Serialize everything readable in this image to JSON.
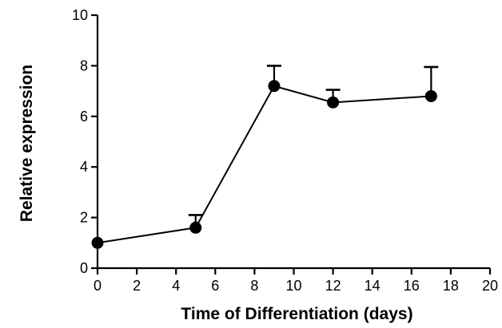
{
  "chart_data": {
    "type": "line",
    "title": "",
    "xlabel": "Time of Differentiation (days)",
    "ylabel": "Relative expression",
    "xlim": [
      0,
      20
    ],
    "ylim": [
      0,
      10
    ],
    "x_ticks": [
      "0",
      "2",
      "4",
      "6",
      "8",
      "10",
      "12",
      "14",
      "16",
      "18",
      "20"
    ],
    "y_ticks": [
      "0",
      "2",
      "4",
      "6",
      "8",
      "10"
    ],
    "grid": false,
    "legend": "none",
    "series": [
      {
        "x": [
          0,
          5,
          9,
          12,
          17
        ],
        "y": [
          1.0,
          1.6,
          7.2,
          6.55,
          6.8
        ],
        "error_upper": [
          0.0,
          0.5,
          0.8,
          0.5,
          1.15
        ],
        "color": "#000000",
        "marker": "circle"
      }
    ]
  }
}
